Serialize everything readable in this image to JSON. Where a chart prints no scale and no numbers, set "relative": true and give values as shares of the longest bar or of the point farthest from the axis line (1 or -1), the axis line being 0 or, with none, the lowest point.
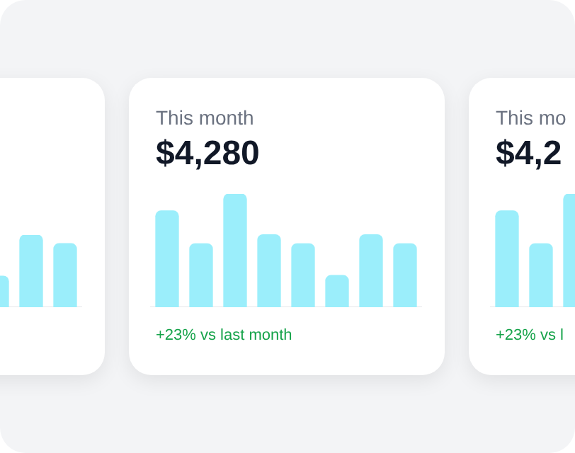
{
  "chart_data": [
    {
      "type": "bar",
      "categories": [
        null,
        null,
        null
      ],
      "values": [
        0.43,
        1,
        0.88
      ],
      "color": "#9beefb",
      "relative": true
    },
    {
      "type": "bar",
      "title": "This month",
      "subtitle": "$4,280",
      "annotations": [
        "+23% vs last month"
      ],
      "categories": [
        null,
        null,
        null,
        null,
        null,
        null,
        null,
        null
      ],
      "values": [
        0.85,
        0.56,
        1,
        0.64,
        0.56,
        0.28,
        0.64,
        0.56
      ],
      "color": "#9beefb",
      "relative": true
    },
    {
      "type": "bar",
      "title": "This mo",
      "subtitle": "$4,2",
      "annotations": [
        "+23% vs l"
      ],
      "categories": [
        null,
        null,
        null
      ],
      "values": [
        0.85,
        0.56,
        1
      ],
      "color": "#9beefb",
      "relative": true
    }
  ]
}
